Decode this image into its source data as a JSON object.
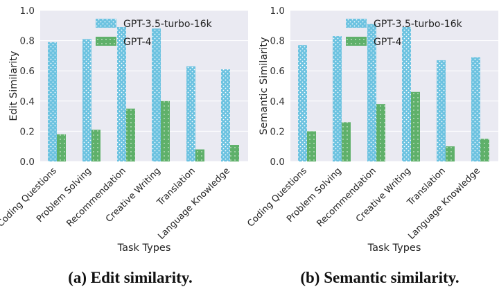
{
  "colors": {
    "gpt35": "#6cc2e0",
    "gpt4": "#5fb06a",
    "plot_bg": "#eaeaf2",
    "grid": "#ffffff"
  },
  "chart_data": [
    {
      "type": "bar",
      "caption": "(a) Edit similarity.",
      "xlabel": "Task Types",
      "ylabel": "Edit Similarity",
      "ylim": [
        0,
        1.0
      ],
      "yticks": [
        "0.0",
        "0.2",
        "0.4",
        "0.6",
        "0.8",
        "1.0"
      ],
      "categories": [
        "Coding Questions",
        "Problem Solving",
        "Recommendation",
        "Creative Writing",
        "Translation",
        "Language Knowledge"
      ],
      "series": [
        {
          "name": "GPT-3.5-turbo-16k",
          "values": [
            0.79,
            0.81,
            0.89,
            0.88,
            0.63,
            0.61
          ]
        },
        {
          "name": "GPT-4",
          "values": [
            0.18,
            0.21,
            0.35,
            0.4,
            0.08,
            0.11
          ]
        }
      ],
      "legend": "top-right",
      "grid": true
    },
    {
      "type": "bar",
      "caption": "(b) Semantic similarity.",
      "xlabel": "Task Types",
      "ylabel": "Semantic Similarity",
      "ylim": [
        0,
        1.0
      ],
      "yticks": [
        "0.0",
        "0.2",
        "0.4",
        "0.6",
        "0.8",
        "1.0"
      ],
      "categories": [
        "Coding Questions",
        "Problem Solving",
        "Recommendation",
        "Creative Writing",
        "Translation",
        "Language Knowledge"
      ],
      "series": [
        {
          "name": "GPT-3.5-turbo-16k",
          "values": [
            0.77,
            0.83,
            0.91,
            0.89,
            0.67,
            0.69
          ]
        },
        {
          "name": "GPT-4",
          "values": [
            0.2,
            0.26,
            0.38,
            0.46,
            0.1,
            0.15
          ]
        }
      ],
      "legend": "top-right",
      "grid": true
    }
  ]
}
